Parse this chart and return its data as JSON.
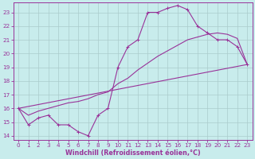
{
  "xlabel": "Windchill (Refroidissement éolien,°C)",
  "bg_color": "#c8ecec",
  "line_color": "#993399",
  "grid_color": "#aacccc",
  "xlim": [
    -0.5,
    23.5
  ],
  "ylim": [
    13.7,
    23.7
  ],
  "yticks": [
    14,
    15,
    16,
    17,
    18,
    19,
    20,
    21,
    22,
    23
  ],
  "xticks": [
    0,
    1,
    2,
    3,
    4,
    5,
    6,
    7,
    8,
    9,
    10,
    11,
    12,
    13,
    14,
    15,
    16,
    17,
    18,
    19,
    20,
    21,
    22,
    23
  ],
  "curve1_x": [
    0,
    1,
    2,
    3,
    4,
    5,
    6,
    7,
    8,
    9,
    10,
    11,
    12,
    13,
    14,
    15,
    16,
    17,
    18,
    19,
    20,
    21,
    22,
    23
  ],
  "curve1_y": [
    16.0,
    14.8,
    15.3,
    15.5,
    14.8,
    14.8,
    14.3,
    14.0,
    15.5,
    16.0,
    19.0,
    20.5,
    21.0,
    23.0,
    23.0,
    23.3,
    23.5,
    23.2,
    22.0,
    21.5,
    21.0,
    21.0,
    20.5,
    19.2
  ],
  "curve2_x": [
    0,
    23
  ],
  "curve2_y": [
    16.0,
    19.2
  ],
  "curve3_x": [
    0,
    1,
    2,
    3,
    4,
    5,
    6,
    7,
    8,
    9,
    10,
    11,
    12,
    13,
    14,
    15,
    16,
    17,
    18,
    19,
    20,
    21,
    22,
    23
  ],
  "curve3_y": [
    16.0,
    15.5,
    15.8,
    16.0,
    16.2,
    16.4,
    16.5,
    16.7,
    17.0,
    17.2,
    17.8,
    18.2,
    18.8,
    19.3,
    19.8,
    20.2,
    20.6,
    21.0,
    21.2,
    21.4,
    21.5,
    21.4,
    21.1,
    19.2
  ],
  "marker_size": 2.5,
  "linewidth": 0.8,
  "tick_fontsize": 5.2,
  "xlabel_fontsize": 5.8
}
